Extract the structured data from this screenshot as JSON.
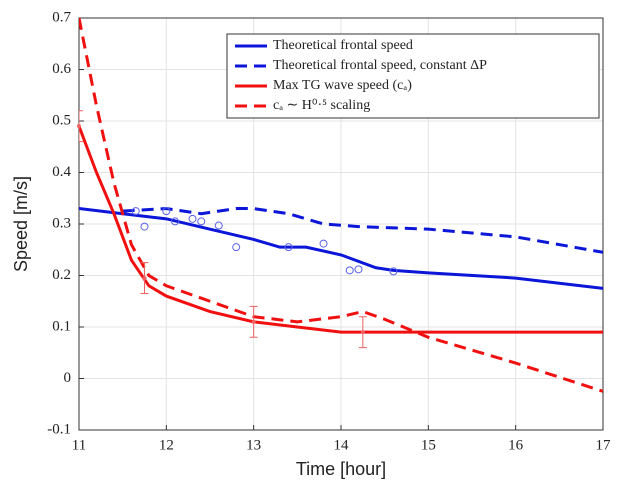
{
  "chart_data": {
    "type": "line",
    "xlabel": "Time [hour]",
    "ylabel": "Speed [m/s]",
    "xlim": [
      11,
      17
    ],
    "xticks": [
      11,
      12,
      13,
      14,
      15,
      16,
      17
    ],
    "ylim": [
      -0.1,
      0.7
    ],
    "yticks": [
      -0.1,
      0,
      0.1,
      0.2,
      0.3,
      0.4,
      0.5,
      0.6,
      0.7
    ],
    "grid": true,
    "legend": "upper right",
    "series": [
      {
        "name": "Theoretical frontal speed",
        "color": "#0b16d8",
        "dash": false,
        "x": [
          11,
          11.5,
          12,
          12.5,
          13,
          13.3,
          13.6,
          14,
          14.4,
          14.6,
          15,
          16,
          17
        ],
        "values": [
          0.33,
          0.32,
          0.31,
          0.29,
          0.27,
          0.255,
          0.255,
          0.24,
          0.215,
          0.21,
          0.205,
          0.195,
          0.175
        ]
      },
      {
        "name": "Theoretical frontal speed, constant ΔP",
        "color": "#0b16d8",
        "dash": true,
        "x": [
          11.5,
          12,
          12.4,
          12.8,
          13,
          13.4,
          13.8,
          14.2,
          15,
          16,
          17
        ],
        "values": [
          0.325,
          0.33,
          0.32,
          0.33,
          0.33,
          0.32,
          0.3,
          0.295,
          0.29,
          0.275,
          0.245
        ]
      },
      {
        "name": "Max TG wave speed (cₐ)",
        "color": "#f01010",
        "dash": false,
        "x": [
          11,
          11.2,
          11.4,
          11.6,
          11.8,
          12,
          12.5,
          13,
          13.5,
          14,
          17
        ],
        "values": [
          0.49,
          0.4,
          0.32,
          0.23,
          0.18,
          0.16,
          0.13,
          0.11,
          0.1,
          0.09,
          0.09
        ]
      },
      {
        "name": "cₐ ∼ H⁰·⁵ scaling",
        "color": "#f01010",
        "dash": true,
        "x": [
          11,
          11.2,
          11.4,
          11.6,
          11.8,
          12,
          12.5,
          13,
          13.5,
          14,
          14.25,
          14.5,
          15,
          16,
          17
        ],
        "values": [
          0.7,
          0.53,
          0.38,
          0.26,
          0.2,
          0.18,
          0.15,
          0.12,
          0.11,
          0.12,
          0.13,
          0.115,
          0.08,
          0.03,
          -0.025
        ]
      }
    ],
    "points": {
      "color": "#5a63e8",
      "x": [
        11.65,
        11.75,
        12,
        12.1,
        12.3,
        12.4,
        12.6,
        12.8,
        13.4,
        13.8,
        14.1,
        14.2,
        14.6
      ],
      "values": [
        0.325,
        0.295,
        0.325,
        0.305,
        0.31,
        0.305,
        0.297,
        0.255,
        0.255,
        0.262,
        0.21,
        0.212,
        0.208
      ]
    },
    "errorbars": {
      "color": "#f06060",
      "x": [
        11,
        11.75,
        13,
        14.25
      ],
      "values": [
        0.49,
        0.195,
        0.11,
        0.09
      ],
      "errors": [
        0.03,
        0.03,
        0.03,
        0.03
      ]
    }
  }
}
